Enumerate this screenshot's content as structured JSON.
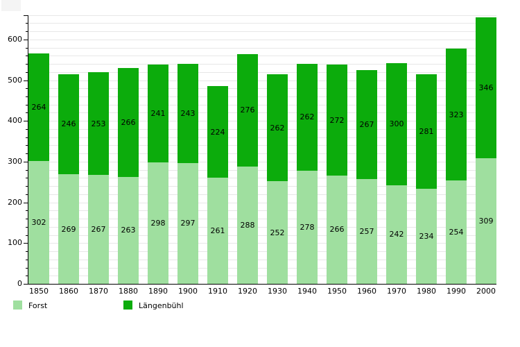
{
  "chart_data": {
    "type": "bar",
    "stacked": true,
    "categories": [
      "1850",
      "1860",
      "1870",
      "1880",
      "1890",
      "1900",
      "1910",
      "1920",
      "1930",
      "1940",
      "1950",
      "1960",
      "1970",
      "1980",
      "1990",
      "2000"
    ],
    "series": [
      {
        "name": "Forst",
        "color": "#9fdf9f",
        "values": [
          302,
          269,
          267,
          263,
          298,
          297,
          261,
          288,
          252,
          278,
          266,
          257,
          242,
          234,
          254,
          309
        ]
      },
      {
        "name": "Längenbühl",
        "color": "#0cac0c",
        "values": [
          264,
          246,
          253,
          266,
          241,
          243,
          224,
          276,
          262,
          262,
          272,
          267,
          300,
          281,
          323,
          346
        ]
      }
    ],
    "ylim": [
      0,
      660
    ],
    "yticks": [
      0,
      100,
      200,
      300,
      400,
      500,
      600
    ],
    "minor_tick_step": 20,
    "grid": true,
    "gridline_color": "#e7e7e7",
    "value_labels": "inside-segment-center",
    "value_label_color": "#000000",
    "legend_position": "bottom-left"
  }
}
